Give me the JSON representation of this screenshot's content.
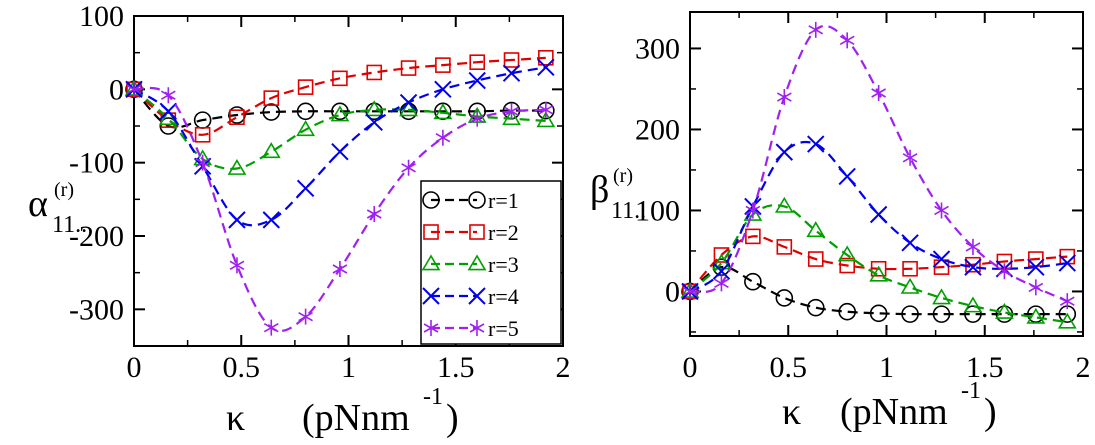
{
  "chart_data": [
    {
      "type": "line",
      "panel": "left",
      "ylabel_symbol": "α",
      "ylabel_superscript": "(r)",
      "ylabel_subscript": "11..",
      "xlabel_symbol": "κ",
      "xlabel_unit_main": "(pNnm",
      "xlabel_unit_exp": "-1",
      "xlabel_unit_close": ")",
      "xlim": [
        0,
        2
      ],
      "ylim": [
        -350,
        100
      ],
      "xticks": [
        0,
        0.5,
        1,
        1.5,
        2
      ],
      "xtick_labels": [
        "0",
        "0.5",
        "1",
        "1.5",
        "2"
      ],
      "yticks": [
        100,
        0,
        -100,
        -200,
        -300
      ],
      "ytick_labels": [
        "100",
        "0",
        "-100",
        "-200",
        "-300"
      ],
      "legend_position": "bottom-right",
      "series": [
        {
          "name": "r=1",
          "color": "#000000",
          "marker": "circle",
          "x": [
            0,
            0.16,
            0.32,
            0.48,
            0.64,
            0.8,
            0.96,
            1.12,
            1.28,
            1.44,
            1.6,
            1.76,
            1.92
          ],
          "y": [
            0,
            -50,
            -42,
            -35,
            -31,
            -30,
            -30,
            -30,
            -30,
            -30,
            -30,
            -29,
            -29
          ]
        },
        {
          "name": "r=2",
          "color": "#e00000",
          "marker": "square",
          "x": [
            0,
            0.16,
            0.32,
            0.48,
            0.64,
            0.8,
            0.96,
            1.12,
            1.28,
            1.44,
            1.6,
            1.76,
            1.92
          ],
          "y": [
            0,
            -42,
            -62,
            -38,
            -12,
            3,
            15,
            23,
            29,
            33,
            37,
            40,
            43
          ]
        },
        {
          "name": "r=3",
          "color": "#00a000",
          "marker": "triangle",
          "x": [
            0,
            0.16,
            0.32,
            0.48,
            0.64,
            0.8,
            0.96,
            1.12,
            1.28,
            1.44,
            1.6,
            1.76,
            1.92
          ],
          "y": [
            0,
            -40,
            -95,
            -108,
            -85,
            -55,
            -35,
            -28,
            -28,
            -32,
            -37,
            -40,
            -43
          ]
        },
        {
          "name": "r=4",
          "color": "#0000ee",
          "marker": "x",
          "x": [
            0,
            0.16,
            0.32,
            0.48,
            0.64,
            0.8,
            0.96,
            1.12,
            1.28,
            1.44,
            1.6,
            1.76,
            1.92
          ],
          "y": [
            0,
            -30,
            -105,
            -178,
            -178,
            -135,
            -85,
            -45,
            -18,
            0,
            12,
            22,
            30
          ]
        },
        {
          "name": "r=5",
          "color": "#a020f0",
          "marker": "asterisk",
          "x": [
            0,
            0.16,
            0.32,
            0.48,
            0.64,
            0.8,
            0.96,
            1.12,
            1.28,
            1.44,
            1.6,
            1.76,
            1.92
          ],
          "y": [
            0,
            -8,
            -100,
            -240,
            -325,
            -310,
            -245,
            -170,
            -107,
            -66,
            -40,
            -30,
            -28
          ]
        }
      ]
    },
    {
      "type": "line",
      "panel": "right",
      "ylabel_symbol": "β",
      "ylabel_superscript": "(r)",
      "ylabel_subscript": "11..",
      "xlabel_symbol": "κ",
      "xlabel_unit_main": "(pNnm",
      "xlabel_unit_exp": "-1",
      "xlabel_unit_close": ")",
      "xlim": [
        0,
        2
      ],
      "ylim": [
        -55,
        345
      ],
      "xticks": [
        0,
        0.5,
        1,
        1.5,
        2
      ],
      "xtick_labels": [
        "0",
        "0.5",
        "1",
        "1.5",
        "2"
      ],
      "yticks": [
        0,
        100,
        200,
        300
      ],
      "ytick_labels": [
        "0",
        "100",
        "200",
        "300"
      ],
      "series": [
        {
          "name": "r=1",
          "color": "#000000",
          "marker": "circle",
          "x": [
            0,
            0.16,
            0.32,
            0.48,
            0.64,
            0.8,
            0.96,
            1.12,
            1.28,
            1.44,
            1.6,
            1.76,
            1.92
          ],
          "y": [
            0,
            30,
            12,
            -8,
            -20,
            -25,
            -27,
            -28,
            -28,
            -28,
            -28,
            -28,
            -28
          ]
        },
        {
          "name": "r=2",
          "color": "#e00000",
          "marker": "square",
          "x": [
            0,
            0.16,
            0.32,
            0.48,
            0.64,
            0.8,
            0.96,
            1.12,
            1.28,
            1.44,
            1.6,
            1.76,
            1.92
          ],
          "y": [
            0,
            45,
            68,
            55,
            40,
            32,
            28,
            28,
            30,
            33,
            37,
            40,
            43
          ]
        },
        {
          "name": "r=3",
          "color": "#00a000",
          "marker": "triangle",
          "x": [
            0,
            0.16,
            0.32,
            0.48,
            0.64,
            0.8,
            0.96,
            1.12,
            1.28,
            1.44,
            1.6,
            1.76,
            1.92
          ],
          "y": [
            0,
            35,
            95,
            105,
            75,
            45,
            20,
            5,
            -8,
            -18,
            -26,
            -32,
            -38
          ]
        },
        {
          "name": "r=4",
          "color": "#0000ee",
          "marker": "x",
          "x": [
            0,
            0.16,
            0.32,
            0.48,
            0.64,
            0.8,
            0.96,
            1.12,
            1.28,
            1.44,
            1.6,
            1.76,
            1.92
          ],
          "y": [
            0,
            25,
            105,
            172,
            182,
            142,
            95,
            60,
            40,
            30,
            28,
            30,
            35
          ]
        },
        {
          "name": "r=5",
          "color": "#a020f0",
          "marker": "asterisk",
          "x": [
            0,
            0.16,
            0.32,
            0.48,
            0.64,
            0.8,
            0.96,
            1.12,
            1.28,
            1.44,
            1.6,
            1.76,
            1.92
          ],
          "y": [
            0,
            10,
            100,
            240,
            323,
            310,
            245,
            165,
            100,
            55,
            25,
            5,
            -12
          ]
        }
      ]
    }
  ]
}
